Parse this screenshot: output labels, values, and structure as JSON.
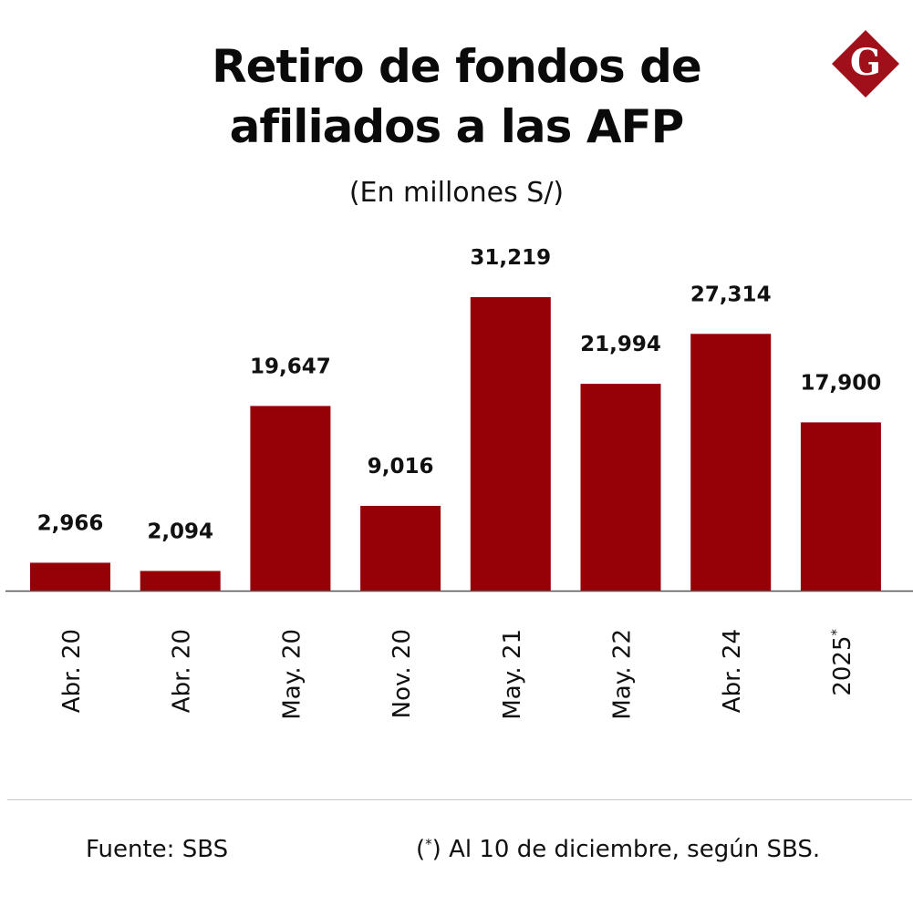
{
  "header": {
    "title_line1": "Retiro de fondos de",
    "title_line2": "afiliados a las AFP",
    "subtitle": "(En millones S/)",
    "logo_letter": "G"
  },
  "colors": {
    "bar": "#960007",
    "logo": "#a0101a",
    "axis": "#555555",
    "text": "#111111"
  },
  "chart_data": {
    "type": "bar",
    "title": "Retiro de fondos de afiliados a las AFP",
    "subtitle": "(En millones S/)",
    "categories": [
      "Abr. 20",
      "Abr. 20",
      "May. 20",
      "Nov. 20",
      "May. 21",
      "May. 22",
      "Abr. 24",
      "2025"
    ],
    "category_marks": [
      "",
      "",
      "",
      "",
      "",
      "",
      "",
      "*"
    ],
    "values": [
      2966,
      2094,
      19647,
      9016,
      31219,
      21994,
      27314,
      17900
    ],
    "data_labels": [
      "2,966",
      "2,094",
      "19,647",
      "9,016",
      "31,219",
      "21,994",
      "27,314",
      "17,900"
    ],
    "ylim": [
      0,
      31219
    ],
    "xlabel": "",
    "ylabel": "",
    "grid": false,
    "legend": "none"
  },
  "footer": {
    "source": "Fuente: SBS",
    "note_mark": "*",
    "note_open": "(",
    "note_close": ")",
    "note_text": " Al 10 de diciembre, según SBS."
  }
}
